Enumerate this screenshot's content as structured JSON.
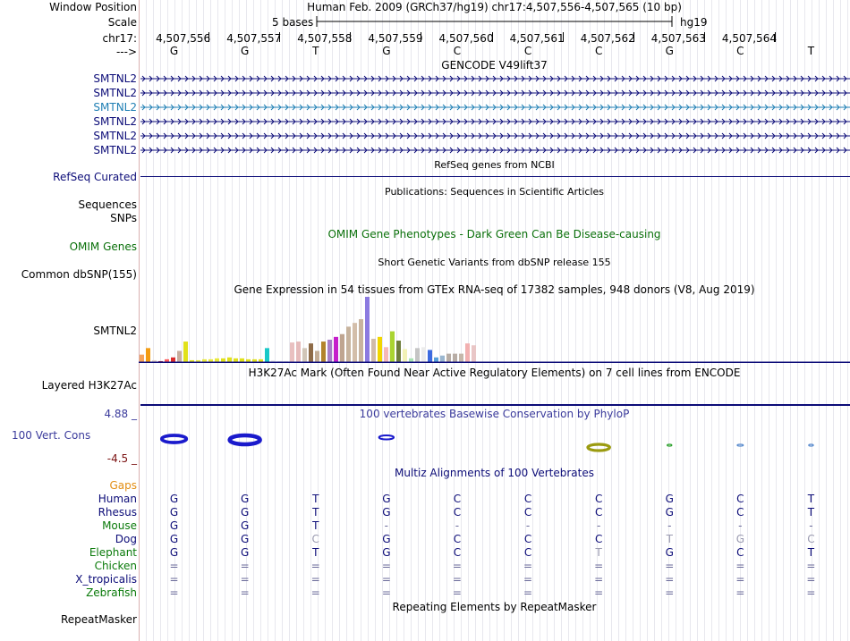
{
  "header": {
    "window_position_label": "Window Position",
    "window_position_text": "Human Feb. 2009 (GRCh37/hg19)   chr17:4,507,556-4,507,565 (10 bp)",
    "scale_label": "Scale",
    "scale_text": "5 bases",
    "scale_assembly": "hg19",
    "chrom_label": "chr17:",
    "strand_label": "--->",
    "positions": [
      "4,507,556",
      "4,507,557",
      "4,507,558",
      "4,507,559",
      "4,507,560",
      "4,507,561",
      "4,507,562",
      "4,507,563",
      "4,507,564"
    ],
    "bases": [
      "G",
      "G",
      "T",
      "G",
      "C",
      "C",
      "C",
      "G",
      "C",
      "T"
    ]
  },
  "gencode": {
    "title": "GENCODE V49lift37",
    "transcripts": [
      "SMTNL2",
      "SMTNL2",
      "SMTNL2",
      "SMTNL2",
      "SMTNL2",
      "SMTNL2"
    ],
    "colors": [
      "#0c0c78",
      "#0c0c78",
      "#1f7fb4",
      "#0c0c78",
      "#0c0c78",
      "#0c0c78"
    ]
  },
  "refseq": {
    "title": "RefSeq genes from NCBI",
    "label": "RefSeq Curated"
  },
  "publications": {
    "title": "Publications: Sequences in Scientific Articles",
    "label": "Sequences"
  },
  "snps_label": "SNPs",
  "omim": {
    "title": "OMIM Gene Phenotypes - Dark Green Can Be Disease-causing",
    "label": "OMIM Genes"
  },
  "dbsnp": {
    "title": "Short Genetic Variants from dbSNP release 155",
    "label": "Common dbSNP(155)"
  },
  "gtex": {
    "title": "Gene Expression in 54 tissues from GTEx RNA-seq of 17382 samples, 948 donors (V8, Aug 2019)",
    "label": "SMTNL2",
    "values": [
      8,
      15,
      2,
      1,
      3,
      5,
      12,
      22,
      2,
      2,
      3,
      3,
      4,
      4,
      5,
      4,
      4,
      3,
      3,
      3,
      15,
      2,
      1,
      1,
      21,
      22,
      15,
      20,
      12,
      22,
      24,
      27,
      30,
      38,
      42,
      46,
      70,
      25,
      27,
      16,
      33,
      23,
      14,
      4,
      15,
      16,
      13,
      5,
      7,
      9,
      9,
      9,
      20,
      18
    ],
    "colors": [
      "#f6a35a",
      "#f39c12",
      "#e7d4c7",
      "#a6203c",
      "#ff5b5b",
      "#db2b2b",
      "#c8ad9d",
      "#e1e11a",
      "#e1e11a",
      "#e9e93b",
      "#e9e93b",
      "#e9e93b",
      "#e9e93b",
      "#e1e11a",
      "#e1e11a",
      "#e1e11a",
      "#e1e11a",
      "#e1e11a",
      "#e1e11a",
      "#e1e11a",
      "#19c8c8",
      "#ececec",
      "#ececec",
      "#ececec",
      "#e9c0c0",
      "#e6bbbb",
      "#d1c6b8",
      "#8e6b47",
      "#c3ad95",
      "#b2832c",
      "#a77ec8",
      "#c51ecb",
      "#bfa590",
      "#c7b39d",
      "#d3beaa",
      "#c8b39f",
      "#8b7ae0",
      "#d0bbaa",
      "#f1d600",
      "#f5b8b8",
      "#aad431",
      "#6f7e3c",
      "#f2f2b6",
      "#a7e3b2",
      "#c5c5c5",
      "#ececec",
      "#3d6be0",
      "#57a0d9",
      "#9ab6cf",
      "#b8ada5",
      "#b8ada5",
      "#c5b7aa",
      "#f2b0b0",
      "#e9c6c6"
    ]
  },
  "h3k27ac": {
    "title": "H3K27Ac Mark (Often Found Near Active Regulatory Elements) on 7 cell lines from ENCODE",
    "label": "Layered H3K27Ac"
  },
  "conservation": {
    "title": "100 vertebrates Basewise Conservation by PhyloP",
    "label": "100 Vert. Cons",
    "ymax": "4.88 _",
    "ymin": "-4.5 _",
    "scores": [
      1.6,
      2.0,
      0,
      0.9,
      0,
      0,
      -1.4,
      -0.2,
      -0.3,
      -0.2
    ]
  },
  "multiz": {
    "title": "Multiz Alignments of 100 Vertebrates",
    "gaps_label": "Gaps",
    "species": [
      {
        "name": "Human",
        "color": "#0c0c78",
        "bases": [
          "G",
          "G",
          "T",
          "G",
          "C",
          "C",
          "C",
          "G",
          "C",
          "T"
        ]
      },
      {
        "name": "Rhesus",
        "color": "#0c0c78",
        "bases": [
          "G",
          "G",
          "T",
          "G",
          "C",
          "C",
          "C",
          "G",
          "C",
          "T"
        ]
      },
      {
        "name": "Mouse",
        "color": "#0a7a0a",
        "bases": [
          "G",
          "G",
          "T",
          "-",
          "-",
          "-",
          "-",
          "-",
          "-",
          "-"
        ]
      },
      {
        "name": "Dog",
        "color": "#0c0c78",
        "bases": [
          "G",
          "G",
          "C",
          "G",
          "C",
          "C",
          "C",
          "T",
          "G",
          "C"
        ]
      },
      {
        "name": "Elephant",
        "color": "#0a7a0a",
        "bases": [
          "G",
          "G",
          "T",
          "G",
          "C",
          "C",
          "T",
          "G",
          "C",
          "T"
        ]
      },
      {
        "name": "Chicken",
        "color": "#0a7a0a",
        "bases": [
          "=",
          "=",
          "=",
          "=",
          "=",
          "=",
          "=",
          "=",
          "=",
          "="
        ]
      },
      {
        "name": "X_tropicalis",
        "color": "#0c0c78",
        "bases": [
          "=",
          "=",
          "=",
          "=",
          "=",
          "=",
          "=",
          "=",
          "=",
          "="
        ]
      },
      {
        "name": "Zebrafish",
        "color": "#0a7a0a",
        "bases": [
          "=",
          "=",
          "=",
          "=",
          "=",
          "=",
          "=",
          "=",
          "=",
          "="
        ]
      }
    ],
    "mismatch": [
      [],
      [],
      [],
      [
        2,
        7,
        8,
        9
      ],
      [
        6
      ],
      [],
      [],
      []
    ]
  },
  "repeatmasker": {
    "title": "Repeating Elements by RepeatMasker",
    "label": "RepeatMasker"
  },
  "colors": {
    "gene": "#0c0c78",
    "omim": "#0a700a",
    "cons": "#3b3b9c",
    "gaps": "#e38e14",
    "consmin": "#7a1010"
  }
}
